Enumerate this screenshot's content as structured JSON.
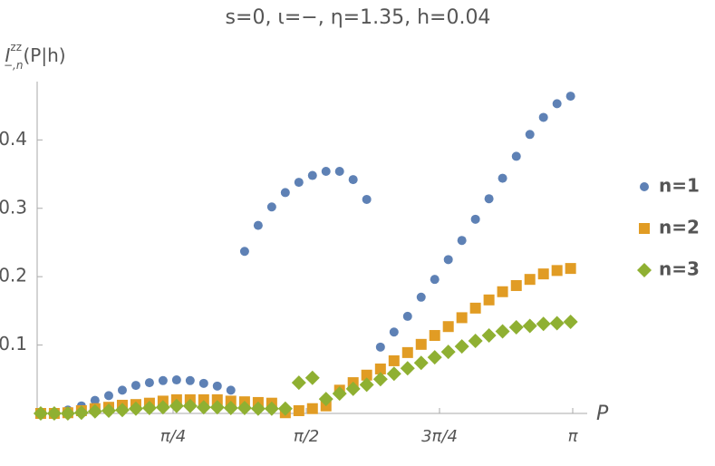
{
  "chart_data": {
    "type": "scatter",
    "title": "s=0, ι=−, η=1.35, h=0.04",
    "y_label": {
      "main": "I",
      "sup": "zz",
      "sub": "−,n",
      "rest": "(P|h)"
    },
    "x_label": "P",
    "x": [
      0.005,
      0.085,
      0.165,
      0.245,
      0.325,
      0.406,
      0.486,
      0.566,
      0.646,
      0.726,
      0.806,
      0.886,
      0.966,
      1.046,
      1.126,
      1.207,
      1.287,
      1.367,
      1.447,
      1.527,
      1.607,
      1.687,
      1.767,
      1.847,
      1.927,
      2.008,
      2.088,
      2.168,
      2.248,
      2.328,
      2.408,
      2.488,
      2.568,
      2.648,
      2.728,
      2.809,
      2.889,
      2.969,
      3.049,
      3.129
    ],
    "series": [
      {
        "name": "n=1",
        "color": "#5e81b5",
        "marker": "circle",
        "values": [
          0.0,
          0.001,
          0.005,
          0.011,
          0.019,
          0.026,
          0.034,
          0.041,
          0.045,
          0.048,
          0.049,
          0.048,
          0.044,
          0.04,
          0.034,
          0.237,
          0.275,
          0.302,
          0.323,
          0.338,
          0.348,
          0.354,
          0.354,
          0.342,
          0.313,
          0.097,
          0.119,
          0.142,
          0.17,
          0.196,
          0.225,
          0.253,
          0.284,
          0.314,
          0.344,
          0.376,
          0.408,
          0.433,
          0.453,
          0.464
        ]
      },
      {
        "name": "n=2",
        "color": "#e19c24",
        "marker": "square",
        "values": [
          0.0,
          0.0,
          0.001,
          0.004,
          0.007,
          0.009,
          0.012,
          0.013,
          0.015,
          0.018,
          0.02,
          0.02,
          0.02,
          0.02,
          0.018,
          0.017,
          0.016,
          0.015,
          0.001,
          0.004,
          0.007,
          0.011,
          0.034,
          0.045,
          0.056,
          0.065,
          0.077,
          0.089,
          0.101,
          0.114,
          0.127,
          0.14,
          0.154,
          0.166,
          0.178,
          0.187,
          0.196,
          0.204,
          0.209,
          0.212
        ]
      },
      {
        "name": "n=3",
        "color": "#8fb032",
        "marker": "diamond",
        "values": [
          0.0,
          0.0,
          0.0,
          0.001,
          0.003,
          0.004,
          0.005,
          0.007,
          0.008,
          0.009,
          0.011,
          0.011,
          0.009,
          0.009,
          0.008,
          0.008,
          0.007,
          0.007,
          0.007,
          0.045,
          0.052,
          0.021,
          0.029,
          0.036,
          0.042,
          0.05,
          0.058,
          0.066,
          0.074,
          0.082,
          0.09,
          0.098,
          0.106,
          0.114,
          0.12,
          0.126,
          0.128,
          0.131,
          0.132,
          0.134
        ]
      }
    ],
    "xlim": [
      0,
      3.1416
    ],
    "ylim": [
      0,
      0.48
    ],
    "xticks": [
      {
        "value": 0.7854,
        "label": "π/4"
      },
      {
        "value": 1.5708,
        "label": "π/2"
      },
      {
        "value": 2.3562,
        "label": "3π/4"
      },
      {
        "value": 3.1416,
        "label": "π"
      }
    ],
    "yticks": [
      0.1,
      0.2,
      0.3,
      0.4
    ],
    "legend": "right"
  }
}
